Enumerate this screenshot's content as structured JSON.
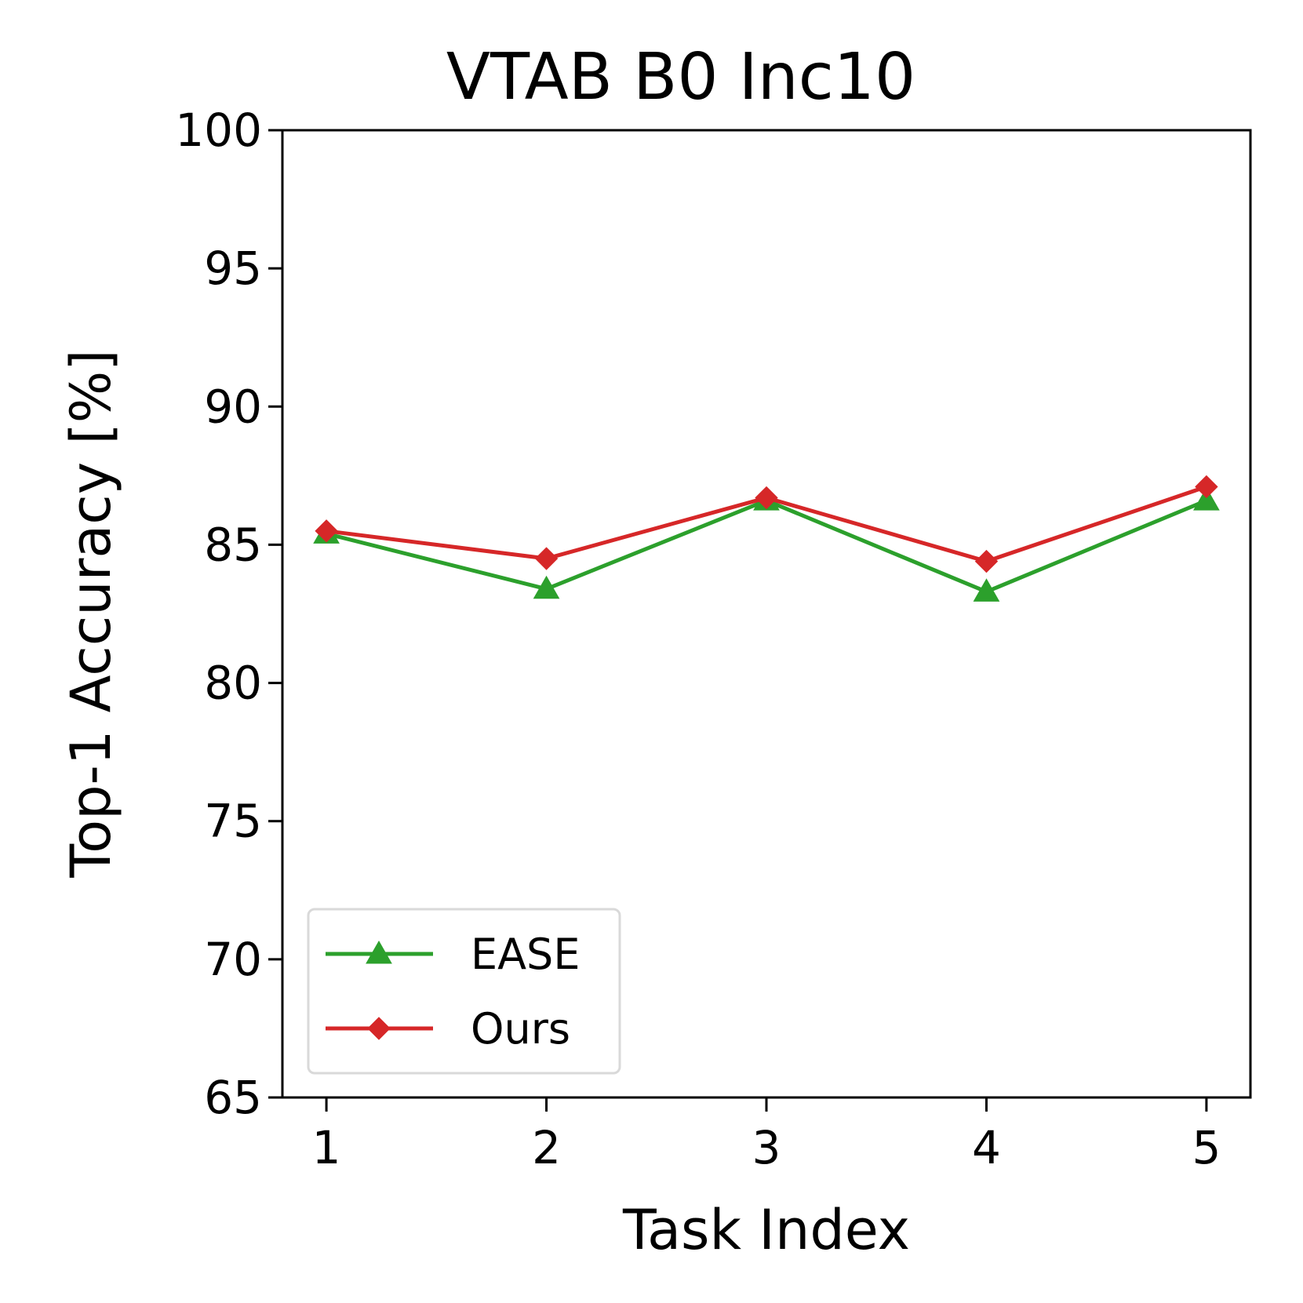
{
  "chart_data": {
    "type": "line",
    "title": "VTAB B0 Inc10",
    "xlabel": "Task Index",
    "ylabel": "Top-1 Accuracy [%]",
    "x": [
      1,
      2,
      3,
      4,
      5
    ],
    "xticks": [
      "1",
      "2",
      "3",
      "4",
      "5"
    ],
    "xlim": [
      0.8,
      5.2
    ],
    "ylim": [
      65,
      100
    ],
    "yticks": [
      "65",
      "70",
      "75",
      "80",
      "85",
      "90",
      "95",
      "100"
    ],
    "grid": false,
    "legend_position": "lower-left",
    "series": [
      {
        "name": "EASE",
        "values": [
          85.4,
          83.4,
          86.6,
          83.3,
          86.6
        ],
        "color": "#2ca02c",
        "marker": "triangle"
      },
      {
        "name": "Ours",
        "values": [
          85.5,
          84.5,
          86.7,
          84.4,
          87.1
        ],
        "color": "#d62728",
        "marker": "diamond"
      }
    ]
  }
}
